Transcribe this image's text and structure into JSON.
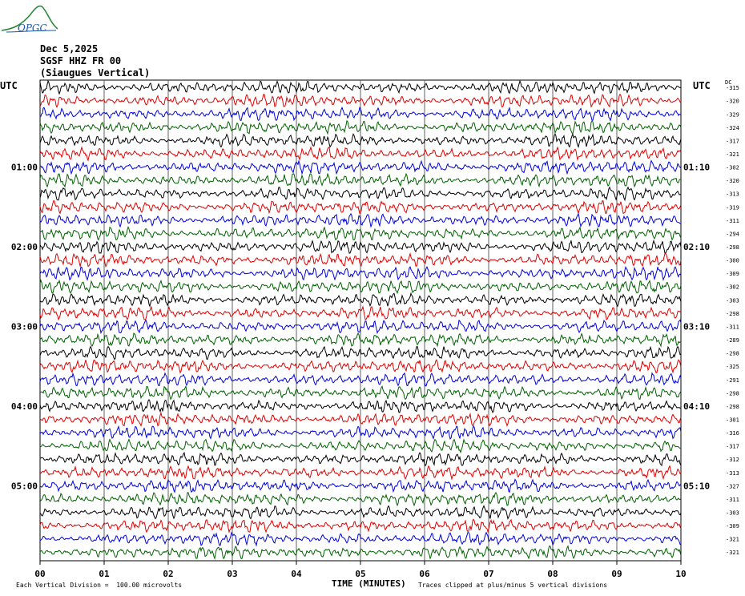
{
  "logo": {
    "text": "OPGC",
    "icon": "volcano-logo-icon",
    "color": "#2a8a3a"
  },
  "header": {
    "date": "Dec 5,2025",
    "station": "SGSF HHZ FR 00",
    "location": "(Siaugues Vertical)"
  },
  "labels": {
    "utc_left": "UTC",
    "utc_right": "UTC",
    "dc": "DC"
  },
  "chart_data": {
    "type": "line",
    "title": "",
    "xlabel": "TIME (MINUTES)",
    "ylabel": "",
    "xlim": [
      0,
      10
    ],
    "x_ticks": [
      "00",
      "01",
      "02",
      "03",
      "04",
      "05",
      "06",
      "07",
      "08",
      "09",
      "10"
    ],
    "trace_minutes": 10,
    "trace_count": 36,
    "trace_colors": [
      "#000000",
      "#e00000",
      "#0000d8",
      "#006000"
    ],
    "left_time_labels": [
      {
        "row": 6,
        "label": "01:00"
      },
      {
        "row": 12,
        "label": "02:00"
      },
      {
        "row": 18,
        "label": "03:00"
      },
      {
        "row": 24,
        "label": "04:00"
      },
      {
        "row": 30,
        "label": "05:00"
      }
    ],
    "right_time_labels": [
      {
        "row": 6,
        "label": "01:10"
      },
      {
        "row": 12,
        "label": "02:10"
      },
      {
        "row": 18,
        "label": "03:10"
      },
      {
        "row": 24,
        "label": "04:10"
      },
      {
        "row": 30,
        "label": "05:10"
      }
    ],
    "dc_offsets": [
      -315,
      -320,
      -329,
      -324,
      -317,
      -321,
      -302,
      -320,
      -313,
      -319,
      -311,
      -294,
      -298,
      -300,
      -309,
      -302,
      -303,
      -298,
      -311,
      -289,
      -298,
      -325,
      -291,
      -298,
      -298,
      -301,
      -316,
      -317,
      -312,
      -313,
      -327,
      -311,
      -303,
      -309,
      -321,
      -321
    ]
  },
  "footer": {
    "left": "Each Vertical Division =  100.00 microvolts",
    "right": "Traces clipped at plus/minus 5 vertical divisions"
  }
}
